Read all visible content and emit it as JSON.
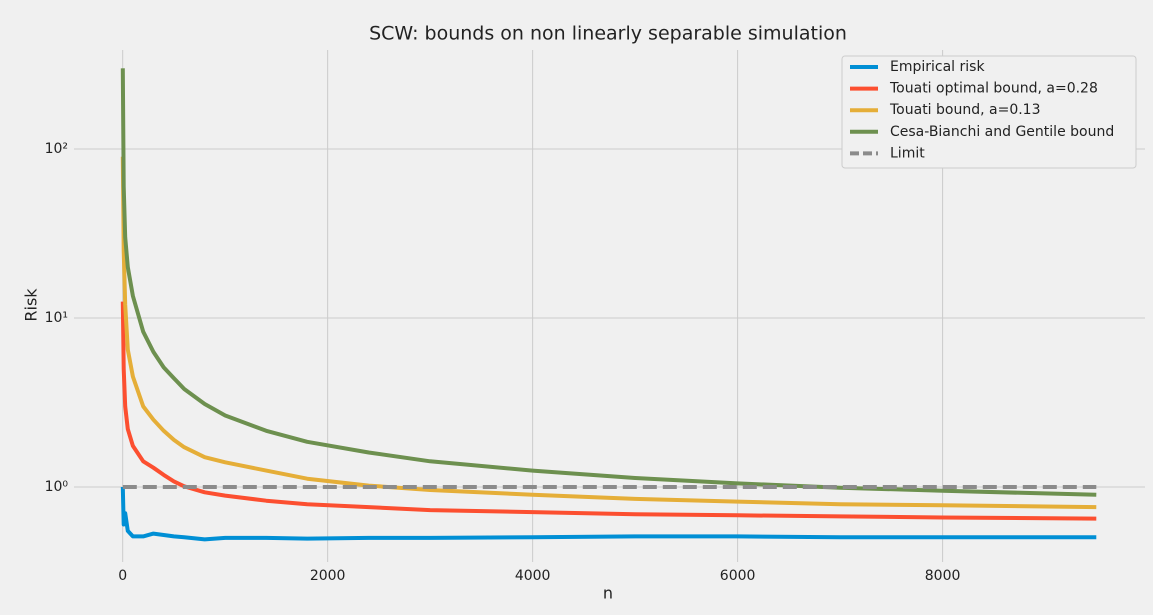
{
  "chart_data": {
    "type": "line",
    "title": "SCW: bounds on non linearly separable simulation",
    "x_label": "n",
    "y_label": "Risk",
    "x": [
      1,
      10,
      25,
      50,
      100,
      200,
      300,
      400,
      500,
      600,
      800,
      1000,
      1400,
      1800,
      2400,
      3000,
      4000,
      5000,
      6000,
      7000,
      8000,
      9500
    ],
    "series": [
      {
        "name": "Empirical risk",
        "color": "#008fd5",
        "values": [
          1.0,
          0.6,
          0.7,
          0.55,
          0.51,
          0.51,
          0.53,
          0.52,
          0.51,
          0.505,
          0.49,
          0.5,
          0.5,
          0.495,
          0.5,
          0.5,
          0.505,
          0.51,
          0.51,
          0.505,
          0.505,
          0.505
        ]
      },
      {
        "name": "Touati optimal bound, a=0.28",
        "color": "#fc4f30",
        "values": [
          12.5,
          5,
          3,
          2.2,
          1.75,
          1.42,
          1.3,
          1.18,
          1.08,
          1.01,
          0.93,
          0.89,
          0.83,
          0.79,
          0.76,
          0.73,
          0.71,
          0.69,
          0.68,
          0.67,
          0.66,
          0.65
        ]
      },
      {
        "name": "Touati bound, a=0.13",
        "color": "#e5ae38",
        "values": [
          90,
          25,
          12,
          6.5,
          4.5,
          3.0,
          2.5,
          2.15,
          1.9,
          1.72,
          1.5,
          1.4,
          1.25,
          1.12,
          1.02,
          0.96,
          0.9,
          0.85,
          0.82,
          0.79,
          0.78,
          0.76
        ]
      },
      {
        "name": "Cesa-Bianchi and Gentile bound",
        "color": "#6d904f",
        "values": [
          300,
          60,
          30,
          20,
          13.5,
          8.3,
          6.3,
          5.1,
          4.4,
          3.8,
          3.1,
          2.65,
          2.15,
          1.85,
          1.6,
          1.42,
          1.25,
          1.13,
          1.05,
          0.99,
          0.95,
          0.9
        ]
      },
      {
        "name": "Limit",
        "color": "#8b8b8b",
        "dashed": true,
        "values": [
          1,
          1,
          1,
          1,
          1,
          1,
          1,
          1,
          1,
          1,
          1,
          1,
          1,
          1,
          1,
          1,
          1,
          1,
          1,
          1,
          1,
          1
        ]
      }
    ],
    "xlim": [
      -475,
      9975
    ],
    "xticks": [
      0,
      2000,
      4000,
      6000,
      8000
    ],
    "ylim": [
      0.36,
      385
    ],
    "log_y": true,
    "yticks": [
      {
        "value": 1,
        "label": "10⁰"
      },
      {
        "value": 10,
        "label": "10¹"
      },
      {
        "value": 100,
        "label": "10²"
      }
    ],
    "grid": true,
    "legend": "upper right"
  }
}
